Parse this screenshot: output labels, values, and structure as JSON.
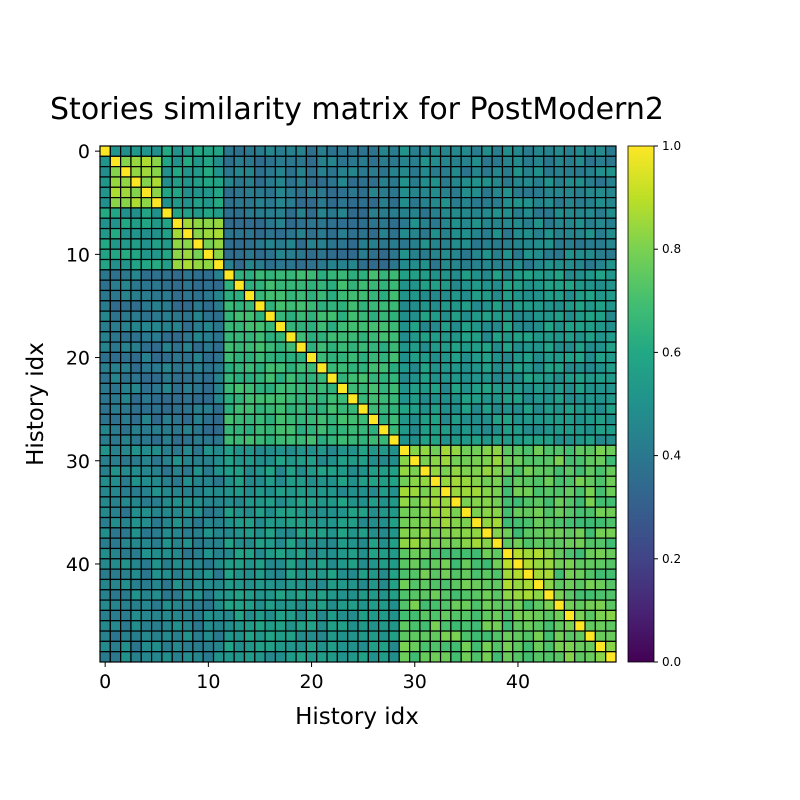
{
  "chart_data": {
    "type": "heatmap",
    "title": "Stories similarity matrix for PostModern2",
    "xlabel": "History idx",
    "ylabel": "History idx",
    "n": 50,
    "x_ticks": [
      0,
      10,
      20,
      30,
      40
    ],
    "y_ticks": [
      0,
      10,
      20,
      30,
      40
    ],
    "colorbar": {
      "min": 0.0,
      "max": 1.0,
      "ticks": [
        "0.0",
        "0.2",
        "0.4",
        "0.6",
        "0.8",
        "1.0"
      ],
      "colormap": "viridis"
    },
    "clusters": [
      {
        "start": 1,
        "end": 5,
        "within": 0.85
      },
      {
        "start": 7,
        "end": 11,
        "within": 0.83
      },
      {
        "start": 12,
        "end": 28,
        "within": 0.66
      },
      {
        "start": 29,
        "end": 38,
        "within": 0.82
      },
      {
        "start": 39,
        "end": 43,
        "within": 0.85
      },
      {
        "start": 44,
        "end": 49,
        "within": 0.78
      }
    ],
    "cluster_similarity": {
      "early_block": {
        "start": 0,
        "end": 11
      },
      "middle_block": {
        "start": 12,
        "end": 28
      },
      "late_block": {
        "start": 29,
        "end": 49
      },
      "early_vs_middle": 0.4,
      "early_vs_late": 0.45,
      "middle_vs_late": 0.52,
      "early_internal": 0.55,
      "middle_internal": 0.6,
      "late_internal": 0.74
    },
    "diagonal": 1.0,
    "grid": true
  }
}
